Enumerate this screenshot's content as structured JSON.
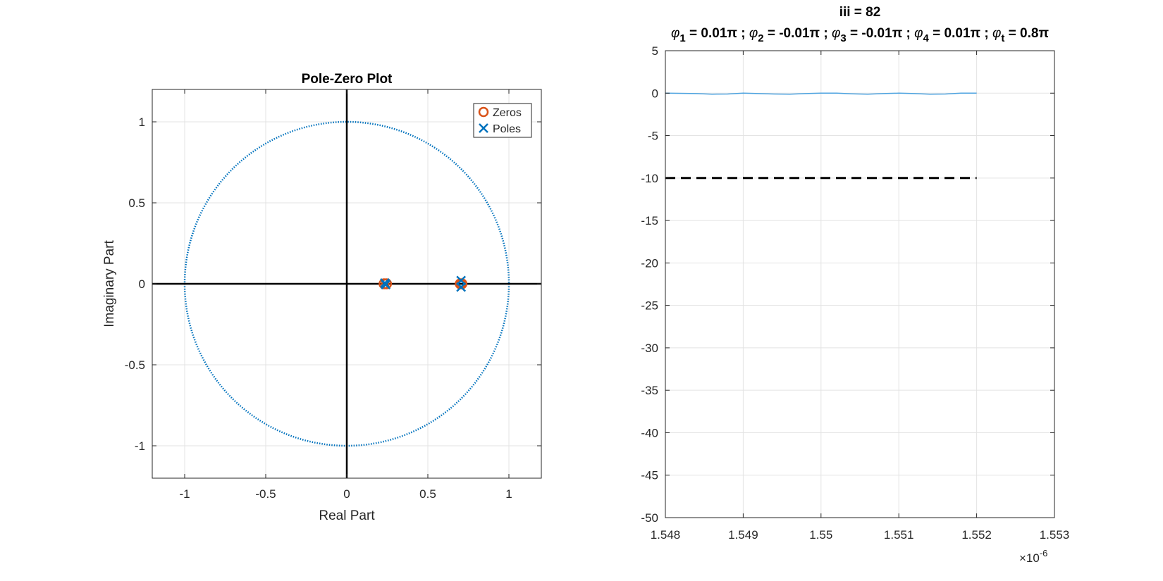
{
  "chart_data": [
    {
      "type": "scatter",
      "title": "Pole-Zero Plot",
      "xlabel": "Real Part",
      "ylabel": "Imaginary Part",
      "xlim": [
        -1.2,
        1.2
      ],
      "ylim": [
        -1.2,
        1.2
      ],
      "xticks": [
        -1,
        -0.5,
        0,
        0.5,
        1
      ],
      "xtick_labels": [
        "-1",
        "-0.5",
        "0",
        "0.5",
        "1"
      ],
      "yticks": [
        -1,
        -0.5,
        0,
        0.5,
        1
      ],
      "ytick_labels": [
        "-1",
        "-0.5",
        "0",
        "0.5",
        "1"
      ],
      "grid": true,
      "unit_circle": {
        "radius": 1,
        "style": "dotted",
        "color": "#0072BD"
      },
      "legend": {
        "position": "top-right",
        "entries": [
          "Zeros",
          "Poles"
        ]
      },
      "series": [
        {
          "name": "Zeros",
          "marker": "o",
          "color": "#D95319",
          "points": [
            [
              0.23,
              0.0
            ],
            [
              0.245,
              0.0
            ],
            [
              0.7,
              0.0
            ],
            [
              0.71,
              0.0
            ]
          ]
        },
        {
          "name": "Poles",
          "marker": "x",
          "color": "#0072BD",
          "points": [
            [
              0.235,
              0.005
            ],
            [
              0.24,
              -0.005
            ],
            [
              0.705,
              0.02
            ],
            [
              0.705,
              -0.02
            ]
          ]
        }
      ]
    },
    {
      "type": "line",
      "title": "iii = 82",
      "subtitle": {
        "parts": [
          {
            "sym": "φ",
            "sub": "1",
            "val": " = 0.01π ; "
          },
          {
            "sym": "φ",
            "sub": "2",
            "val": " = -0.01π ; "
          },
          {
            "sym": "φ",
            "sub": "3",
            "val": " = -0.01π ; "
          },
          {
            "sym": "φ",
            "sub": "4",
            "val": " = 0.01π ; "
          },
          {
            "sym": "φ",
            "sub": "t",
            "val": " = 0.8π"
          }
        ]
      },
      "xlim": [
        1.548e-06,
        1.553e-06
      ],
      "ylim": [
        -50,
        5
      ],
      "xticks": [
        1.548e-06,
        1.549e-06,
        1.55e-06,
        1.551e-06,
        1.552e-06,
        1.553e-06
      ],
      "xtick_labels": [
        "1.548",
        "1.549",
        "1.55",
        "1.551",
        "1.552",
        "1.553"
      ],
      "x_exponent": "×10",
      "x_exponent_power": "-6",
      "yticks": [
        5,
        0,
        -5,
        -10,
        -15,
        -20,
        -25,
        -30,
        -35,
        -40,
        -45,
        -50
      ],
      "ytick_labels": [
        "5",
        "0",
        "-5",
        "-10",
        "-15",
        "-20",
        "-25",
        "-30",
        "-35",
        "-40",
        "-45",
        "-50"
      ],
      "grid": true,
      "series": [
        {
          "style": "solid",
          "color": "#4DA3E0",
          "x": [
            1.548e-06,
            1.5484e-06,
            1.5486e-06,
            1.5488e-06,
            1.549e-06,
            1.5492e-06,
            1.5494e-06,
            1.5496e-06,
            1.5498e-06,
            1.55e-06,
            1.5502e-06,
            1.5504e-06,
            1.5506e-06,
            1.5508e-06,
            1.551e-06,
            1.5512e-06,
            1.5514e-06,
            1.5516e-06,
            1.5518e-06,
            1.552e-06
          ],
          "y": [
            0,
            -0.05,
            -0.12,
            -0.1,
            0,
            -0.05,
            -0.1,
            -0.12,
            -0.05,
            0,
            0,
            -0.08,
            -0.12,
            -0.05,
            0,
            -0.05,
            -0.12,
            -0.1,
            0,
            0
          ]
        },
        {
          "style": "dashed",
          "color": "#000000",
          "x": [
            1.548e-06,
            1.552e-06
          ],
          "y": [
            -10,
            -10
          ]
        }
      ]
    }
  ]
}
